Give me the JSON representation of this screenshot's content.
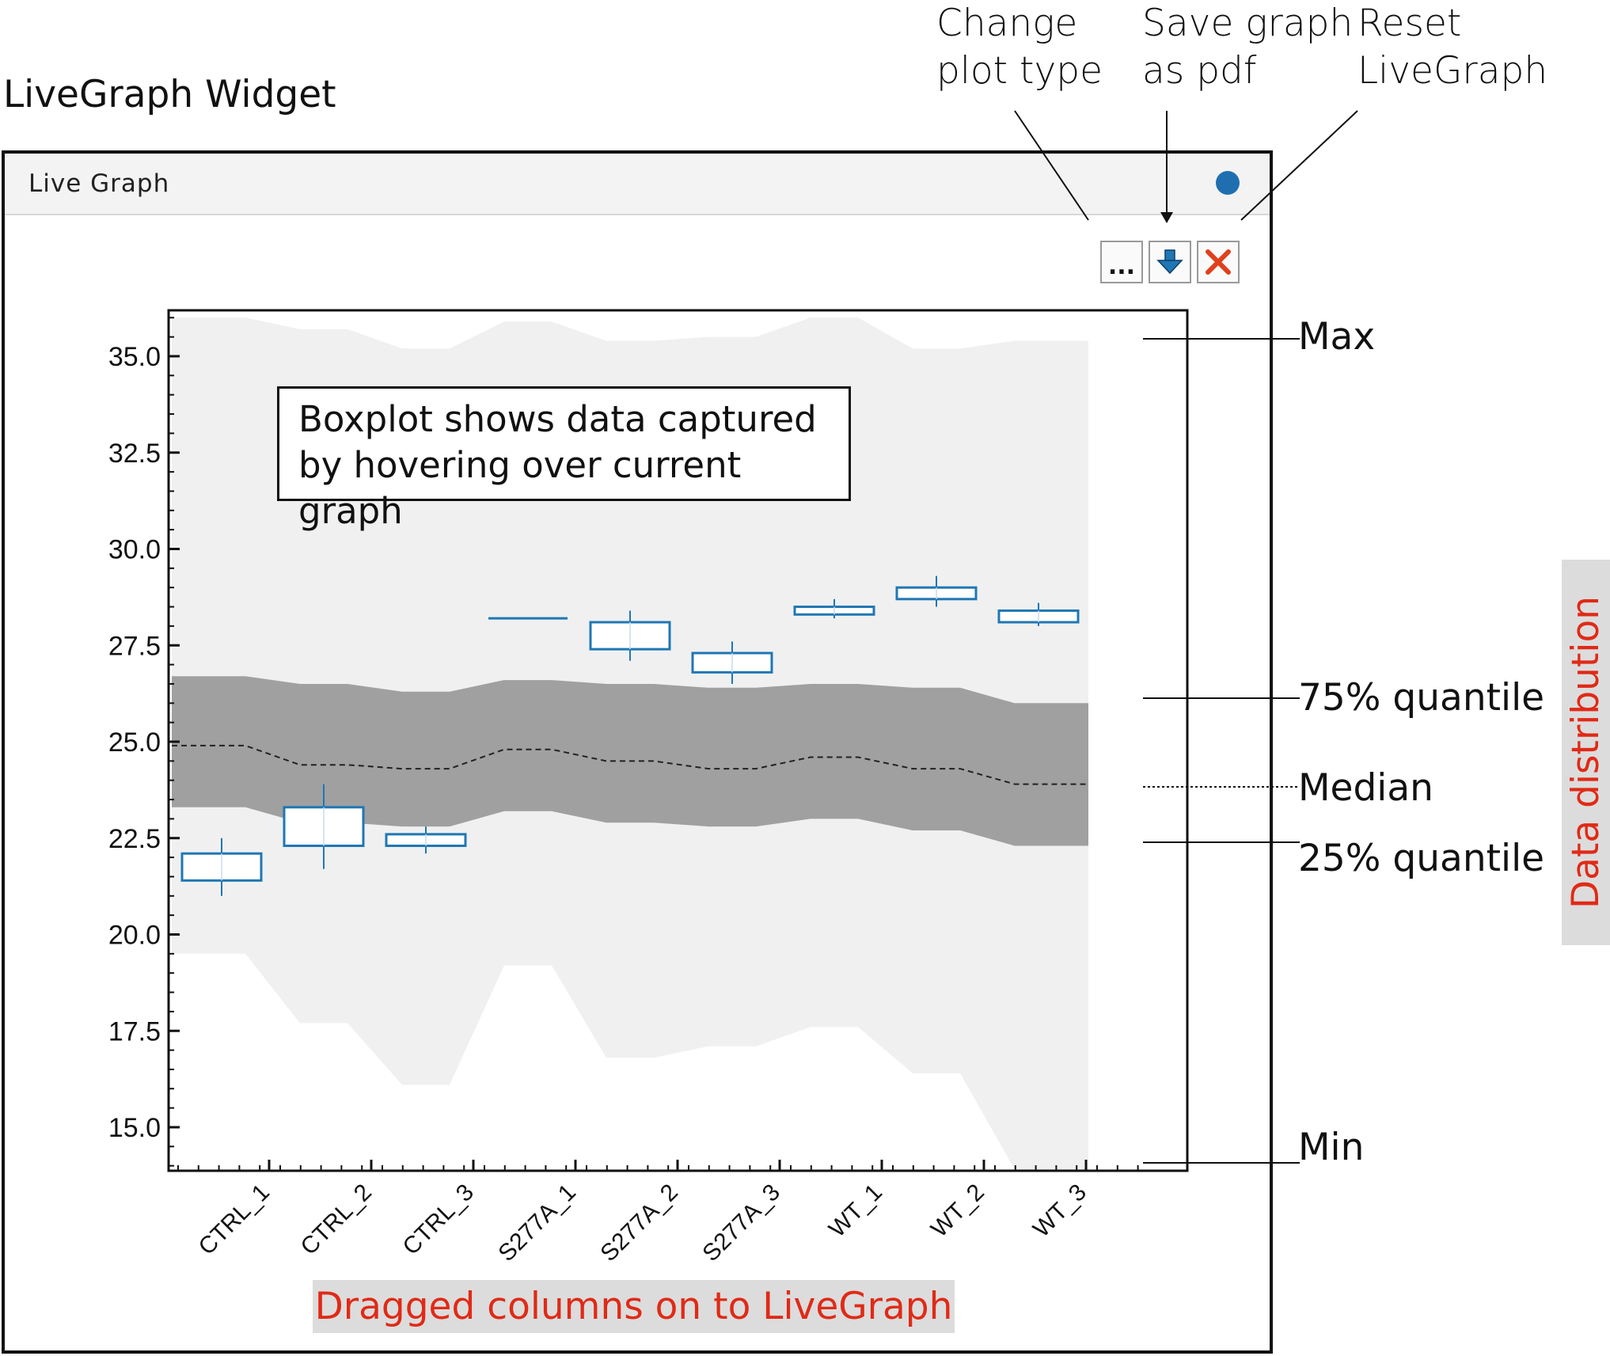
{
  "annotations": {
    "widget_caption": "LiveGraph Widget",
    "change_plot_type": [
      "Change",
      "plot type"
    ],
    "save_graph": [
      "Save graph",
      "as pdf"
    ],
    "reset_livegraph": [
      "Reset",
      "LiveGraph"
    ],
    "boxplot_note": [
      "Boxplot shows data captured",
      "by hovering over current graph"
    ],
    "dragged_columns": "Dragged columns on to LiveGraph",
    "data_distribution": "Data distribution",
    "max": "Max",
    "q75": "75% quantile",
    "median": "Median",
    "q25": "25% quantile",
    "min": "Min"
  },
  "widget": {
    "title": "Live  Graph",
    "buttons": {
      "plot_type": "...",
      "save_icon": "download-arrow-icon",
      "reset_icon": "close-x-icon"
    },
    "colors": {
      "box": "#1f77b4",
      "band_outer": "#f0f0f0",
      "band_inner": "#a0a0a0",
      "status_dot": "#1f6fb0",
      "reset": "#e0401c",
      "red_label": "#e02a16"
    }
  },
  "chart_data": {
    "type": "boxplot_with_distribution_bands",
    "categories": [
      "CTRL_1",
      "CTRL_2",
      "CTRL_3",
      "S277A_1",
      "S277A_2",
      "S277A_3",
      "WT_1",
      "WT_2",
      "WT_3"
    ],
    "ylim": [
      13.8,
      36.2
    ],
    "yticks": [
      15.0,
      17.5,
      20.0,
      22.5,
      25.0,
      27.5,
      30.0,
      32.5,
      35.0
    ],
    "ytick_labels": [
      "15.0",
      "17.5",
      "20.0",
      "22.5",
      "25.0",
      "27.5",
      "30.0",
      "32.5",
      "35.0"
    ],
    "boxes": [
      {
        "q1": 21.4,
        "median": 21.8,
        "q3": 22.1,
        "whisker_low": 21.0,
        "whisker_high": 22.5
      },
      {
        "q1": 22.3,
        "median": 22.8,
        "q3": 23.3,
        "whisker_low": 21.7,
        "whisker_high": 23.9
      },
      {
        "q1": 22.3,
        "median": 22.4,
        "q3": 22.6,
        "whisker_low": 22.1,
        "whisker_high": 22.8
      },
      {
        "q1": 28.2,
        "median": 28.2,
        "q3": 28.2,
        "whisker_low": 28.2,
        "whisker_high": 28.2
      },
      {
        "q1": 27.4,
        "median": 27.8,
        "q3": 28.1,
        "whisker_low": 27.1,
        "whisker_high": 28.4
      },
      {
        "q1": 26.8,
        "median": 27.0,
        "q3": 27.3,
        "whisker_low": 26.5,
        "whisker_high": 27.6
      },
      {
        "q1": 28.3,
        "median": 28.4,
        "q3": 28.5,
        "whisker_low": 28.2,
        "whisker_high": 28.7
      },
      {
        "q1": 28.7,
        "median": 28.9,
        "q3": 29.0,
        "whisker_low": 28.5,
        "whisker_high": 29.3
      },
      {
        "q1": 28.1,
        "median": 28.2,
        "q3": 28.4,
        "whisker_low": 28.0,
        "whisker_high": 28.6
      }
    ],
    "distribution": {
      "max": [
        36.0,
        35.7,
        35.2,
        35.9,
        35.4,
        35.5,
        36.0,
        35.2,
        35.4
      ],
      "q75": [
        26.7,
        26.5,
        26.3,
        26.6,
        26.5,
        26.4,
        26.5,
        26.4,
        26.0
      ],
      "median": [
        24.9,
        24.4,
        24.3,
        24.8,
        24.5,
        24.3,
        24.6,
        24.3,
        23.9
      ],
      "q25": [
        23.3,
        22.9,
        22.8,
        23.2,
        22.9,
        22.8,
        23.0,
        22.7,
        22.3
      ],
      "min": [
        19.5,
        17.7,
        16.1,
        19.2,
        16.8,
        17.1,
        17.6,
        16.4,
        13.9
      ]
    }
  }
}
